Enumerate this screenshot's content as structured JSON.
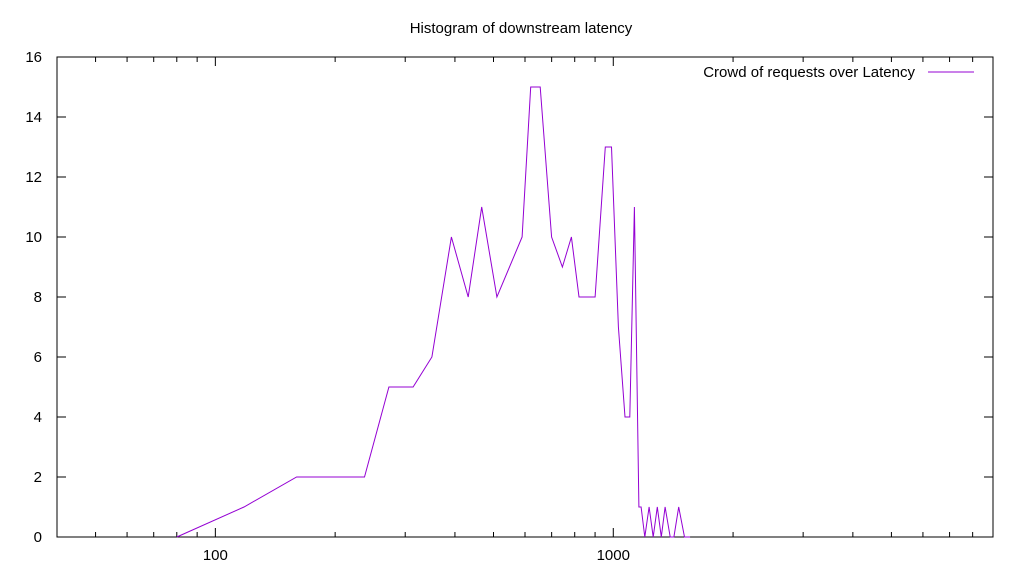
{
  "chart_data": {
    "type": "line",
    "title": "Histogram of downstream latency",
    "xlabel": "",
    "ylabel": "",
    "xscale": "log",
    "xlim": [
      40,
      9000
    ],
    "ylim": [
      0,
      16
    ],
    "grid": false,
    "legend_position": "top-right",
    "x_ticks_major": [
      100,
      1000
    ],
    "x_tick_labels": [
      "100",
      "1000"
    ],
    "y_ticks": [
      0,
      2,
      4,
      6,
      8,
      10,
      12,
      14,
      16
    ],
    "y_tick_labels": [
      "0",
      "2",
      "4",
      "6",
      "8",
      "10",
      "12",
      "14",
      "16"
    ],
    "series": [
      {
        "name": "Crowd of requests over Latency",
        "color": "#9400d3",
        "x": [
          80,
          118,
          160,
          237,
          273,
          314,
          350,
          392,
          432,
          467,
          510,
          590,
          620,
          655,
          700,
          745,
          785,
          820,
          900,
          955,
          990,
          1030,
          1070,
          1100,
          1130,
          1160,
          1175,
          1200,
          1230,
          1260,
          1290,
          1320,
          1350,
          1390,
          1420,
          1460,
          1510,
          1560
        ],
        "values": [
          0,
          1,
          2,
          2,
          5,
          5,
          6,
          10,
          8,
          11,
          8,
          10,
          15,
          15,
          10,
          9,
          10,
          8,
          8,
          13,
          13,
          7,
          4,
          4,
          11,
          1,
          1,
          0,
          1,
          0,
          1,
          0,
          1,
          0,
          0,
          1,
          0,
          0
        ]
      }
    ]
  }
}
